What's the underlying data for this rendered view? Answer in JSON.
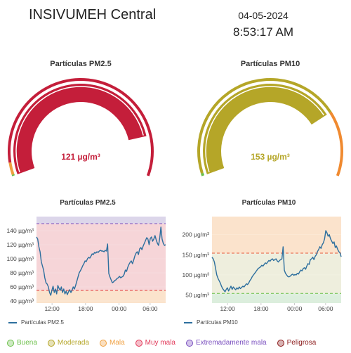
{
  "header": {
    "station": "INSIVUMEH Central",
    "date": "04-05-2024",
    "time": "8:53:17 AM"
  },
  "gauges": [
    {
      "title": "Partículas PM2.5",
      "value_label": "121 µg/m³",
      "value_color": "#c41e3a",
      "fill_color": "#c41e3a",
      "fill_fraction": 0.85,
      "bands": [
        {
          "color": "#6cc04a",
          "upto": 0.005
        },
        {
          "color": "#f0a040",
          "upto": 0.05
        },
        {
          "color": "#c41e3a",
          "upto": 1.0
        }
      ]
    },
    {
      "title": "Partículas PM10",
      "value_label": "153 µg/m³",
      "value_color": "#b5a628",
      "fill_color": "#b5a628",
      "fill_fraction": 0.76,
      "bands": [
        {
          "color": "#6cc04a",
          "upto": 0.01
        },
        {
          "color": "#b5a628",
          "upto": 0.76
        },
        {
          "color": "#f08a30",
          "upto": 1.0
        }
      ]
    }
  ],
  "charts": [
    {
      "title": "Partículas PM2.5",
      "legend": "Partículas PM2.5",
      "line_color": "#2d6f9e",
      "ylim": [
        37,
        160
      ],
      "yticks": [
        40,
        60,
        80,
        100,
        120,
        140
      ],
      "unit": "µg/m³",
      "xticks": [
        "12:00",
        "18:00",
        "00:00",
        "06:00"
      ],
      "bands": [
        {
          "from": 37,
          "to": 55,
          "color": "#fbe3cc"
        },
        {
          "from": 55,
          "to": 150,
          "color": "#f6d5d8"
        },
        {
          "from": 150,
          "to": 160,
          "color": "#dcd6ea"
        }
      ],
      "thresholds": [
        {
          "value": 55,
          "color": "#e23a3a"
        },
        {
          "value": 150,
          "color": "#7a4fbf"
        }
      ],
      "points": [
        [
          0,
          131
        ],
        [
          1,
          128
        ],
        [
          2,
          117
        ],
        [
          3,
          110
        ],
        [
          4,
          96
        ],
        [
          5,
          90
        ],
        [
          6,
          84
        ],
        [
          7,
          73
        ],
        [
          8,
          66
        ],
        [
          9,
          64
        ],
        [
          10,
          60
        ],
        [
          11,
          52
        ],
        [
          12,
          48
        ],
        [
          13,
          55
        ],
        [
          14,
          61
        ],
        [
          15,
          52
        ],
        [
          16,
          57
        ],
        [
          17,
          50
        ],
        [
          18,
          62
        ],
        [
          19,
          58
        ],
        [
          20,
          55
        ],
        [
          21,
          60
        ],
        [
          22,
          52
        ],
        [
          23,
          57
        ],
        [
          24,
          50
        ],
        [
          25,
          54
        ],
        [
          26,
          49
        ],
        [
          27,
          53
        ],
        [
          28,
          56
        ],
        [
          29,
          52
        ],
        [
          30,
          55
        ],
        [
          31,
          60
        ],
        [
          32,
          57
        ],
        [
          33,
          62
        ],
        [
          34,
          68
        ],
        [
          35,
          74
        ],
        [
          36,
          80
        ],
        [
          37,
          83
        ],
        [
          38,
          86
        ],
        [
          39,
          90
        ],
        [
          40,
          93
        ],
        [
          41,
          97
        ],
        [
          42,
          96
        ],
        [
          43,
          100
        ],
        [
          44,
          102
        ],
        [
          45,
          101
        ],
        [
          46,
          104
        ],
        [
          47,
          107
        ],
        [
          48,
          106
        ],
        [
          49,
          109
        ],
        [
          50,
          108
        ],
        [
          51,
          110
        ],
        [
          52,
          109
        ],
        [
          53,
          111
        ],
        [
          54,
          112
        ],
        [
          55,
          111
        ],
        [
          56,
          111
        ],
        [
          57,
          110
        ],
        [
          58,
          112
        ],
        [
          59,
          111
        ],
        [
          60,
          121
        ],
        [
          61,
          79
        ],
        [
          62,
          74
        ],
        [
          63,
          70
        ],
        [
          64,
          66
        ],
        [
          65,
          67
        ],
        [
          66,
          69
        ],
        [
          67,
          70
        ],
        [
          68,
          72
        ],
        [
          69,
          73
        ],
        [
          70,
          75
        ],
        [
          71,
          73
        ],
        [
          72,
          74
        ],
        [
          73,
          75
        ],
        [
          74,
          78
        ],
        [
          75,
          84
        ],
        [
          76,
          82
        ],
        [
          77,
          88
        ],
        [
          78,
          92
        ],
        [
          79,
          95
        ],
        [
          80,
          97
        ],
        [
          81,
          93
        ],
        [
          82,
          98
        ],
        [
          83,
          104
        ],
        [
          84,
          108
        ],
        [
          85,
          110
        ],
        [
          86,
          106
        ],
        [
          87,
          114
        ],
        [
          88,
          116
        ],
        [
          89,
          113
        ],
        [
          90,
          118
        ],
        [
          91,
          122
        ],
        [
          92,
          126
        ],
        [
          93,
          130
        ],
        [
          94,
          128
        ],
        [
          95,
          120
        ],
        [
          96,
          129
        ],
        [
          97,
          131
        ],
        [
          98,
          125
        ],
        [
          99,
          128
        ],
        [
          100,
          133
        ],
        [
          101,
          127
        ],
        [
          102,
          122
        ],
        [
          103,
          119
        ],
        [
          104,
          130
        ],
        [
          105,
          145
        ],
        [
          106,
          128
        ],
        [
          107,
          122
        ],
        [
          108,
          119
        ],
        [
          109,
          120
        ]
      ]
    },
    {
      "title": "Partículas PM10",
      "legend": "Partículas PM10",
      "line_color": "#2d6f9e",
      "ylim": [
        30,
        245
      ],
      "yticks": [
        50,
        100,
        150,
        200
      ],
      "unit": "µg/m³",
      "xticks": [
        "12:00",
        "18:00",
        "00:00",
        "06:00"
      ],
      "bands": [
        {
          "from": 30,
          "to": 54,
          "color": "#dceedd"
        },
        {
          "from": 54,
          "to": 154,
          "color": "#eeeedd"
        },
        {
          "from": 154,
          "to": 245,
          "color": "#fbe3cc"
        }
      ],
      "thresholds": [
        {
          "value": 54,
          "color": "#6cc04a"
        },
        {
          "value": 154,
          "color": "#e85a3a"
        }
      ],
      "points": [
        [
          0,
          144
        ],
        [
          1,
          140
        ],
        [
          2,
          132
        ],
        [
          3,
          116
        ],
        [
          4,
          100
        ],
        [
          5,
          92
        ],
        [
          6,
          86
        ],
        [
          7,
          80
        ],
        [
          8,
          72
        ],
        [
          9,
          66
        ],
        [
          10,
          62
        ],
        [
          11,
          58
        ],
        [
          12,
          64
        ],
        [
          13,
          68
        ],
        [
          14,
          60
        ],
        [
          15,
          66
        ],
        [
          16,
          72
        ],
        [
          17,
          64
        ],
        [
          18,
          70
        ],
        [
          19,
          66
        ],
        [
          20,
          63
        ],
        [
          21,
          68
        ],
        [
          22,
          65
        ],
        [
          23,
          70
        ],
        [
          24,
          66
        ],
        [
          25,
          69
        ],
        [
          26,
          72
        ],
        [
          27,
          70
        ],
        [
          28,
          74
        ],
        [
          29,
          78
        ],
        [
          30,
          76
        ],
        [
          31,
          80
        ],
        [
          32,
          86
        ],
        [
          33,
          90
        ],
        [
          34,
          96
        ],
        [
          35,
          100
        ],
        [
          36,
          104
        ],
        [
          37,
          108
        ],
        [
          38,
          112
        ],
        [
          39,
          116
        ],
        [
          40,
          118
        ],
        [
          41,
          120
        ],
        [
          42,
          124
        ],
        [
          43,
          122
        ],
        [
          44,
          126
        ],
        [
          45,
          130
        ],
        [
          46,
          128
        ],
        [
          47,
          132
        ],
        [
          48,
          136
        ],
        [
          49,
          134
        ],
        [
          50,
          138
        ],
        [
          51,
          140
        ],
        [
          52,
          136
        ],
        [
          53,
          138
        ],
        [
          54,
          140
        ],
        [
          55,
          135
        ],
        [
          56,
          132
        ],
        [
          57,
          136
        ],
        [
          58,
          138
        ],
        [
          59,
          140
        ],
        [
          60,
          170
        ],
        [
          61,
          112
        ],
        [
          62,
          104
        ],
        [
          63,
          100
        ],
        [
          64,
          96
        ],
        [
          65,
          95
        ],
        [
          66,
          97
        ],
        [
          67,
          100
        ],
        [
          68,
          102
        ],
        [
          69,
          99
        ],
        [
          70,
          101
        ],
        [
          71,
          100
        ],
        [
          72,
          104
        ],
        [
          73,
          102
        ],
        [
          74,
          108
        ],
        [
          75,
          112
        ],
        [
          76,
          110
        ],
        [
          77,
          116
        ],
        [
          78,
          118
        ],
        [
          79,
          114
        ],
        [
          80,
          122
        ],
        [
          81,
          128
        ],
        [
          82,
          126
        ],
        [
          83,
          138
        ],
        [
          84,
          140
        ],
        [
          85,
          144
        ],
        [
          86,
          138
        ],
        [
          87,
          146
        ],
        [
          88,
          150
        ],
        [
          89,
          158
        ],
        [
          90,
          163
        ],
        [
          91,
          170
        ],
        [
          92,
          166
        ],
        [
          93,
          175
        ],
        [
          94,
          180
        ],
        [
          95,
          190
        ],
        [
          96,
          210
        ],
        [
          97,
          205
        ],
        [
          98,
          196
        ],
        [
          99,
          200
        ],
        [
          100,
          190
        ],
        [
          101,
          184
        ],
        [
          102,
          178
        ],
        [
          103,
          182
        ],
        [
          104,
          168
        ],
        [
          105,
          172
        ],
        [
          106,
          164
        ],
        [
          107,
          158
        ],
        [
          108,
          155
        ],
        [
          109,
          145
        ]
      ]
    }
  ],
  "aqi_legend": [
    {
      "label": "Buena",
      "color": "#6cc04a"
    },
    {
      "label": "Moderada",
      "color": "#b5a628"
    },
    {
      "label": "Mala",
      "color": "#f0a040"
    },
    {
      "label": "Muy mala",
      "color": "#e23a5a"
    },
    {
      "label": "Extremadamente mala",
      "color": "#7a4fbf"
    },
    {
      "label": "Peligrosa",
      "color": "#8b1a1a"
    }
  ]
}
